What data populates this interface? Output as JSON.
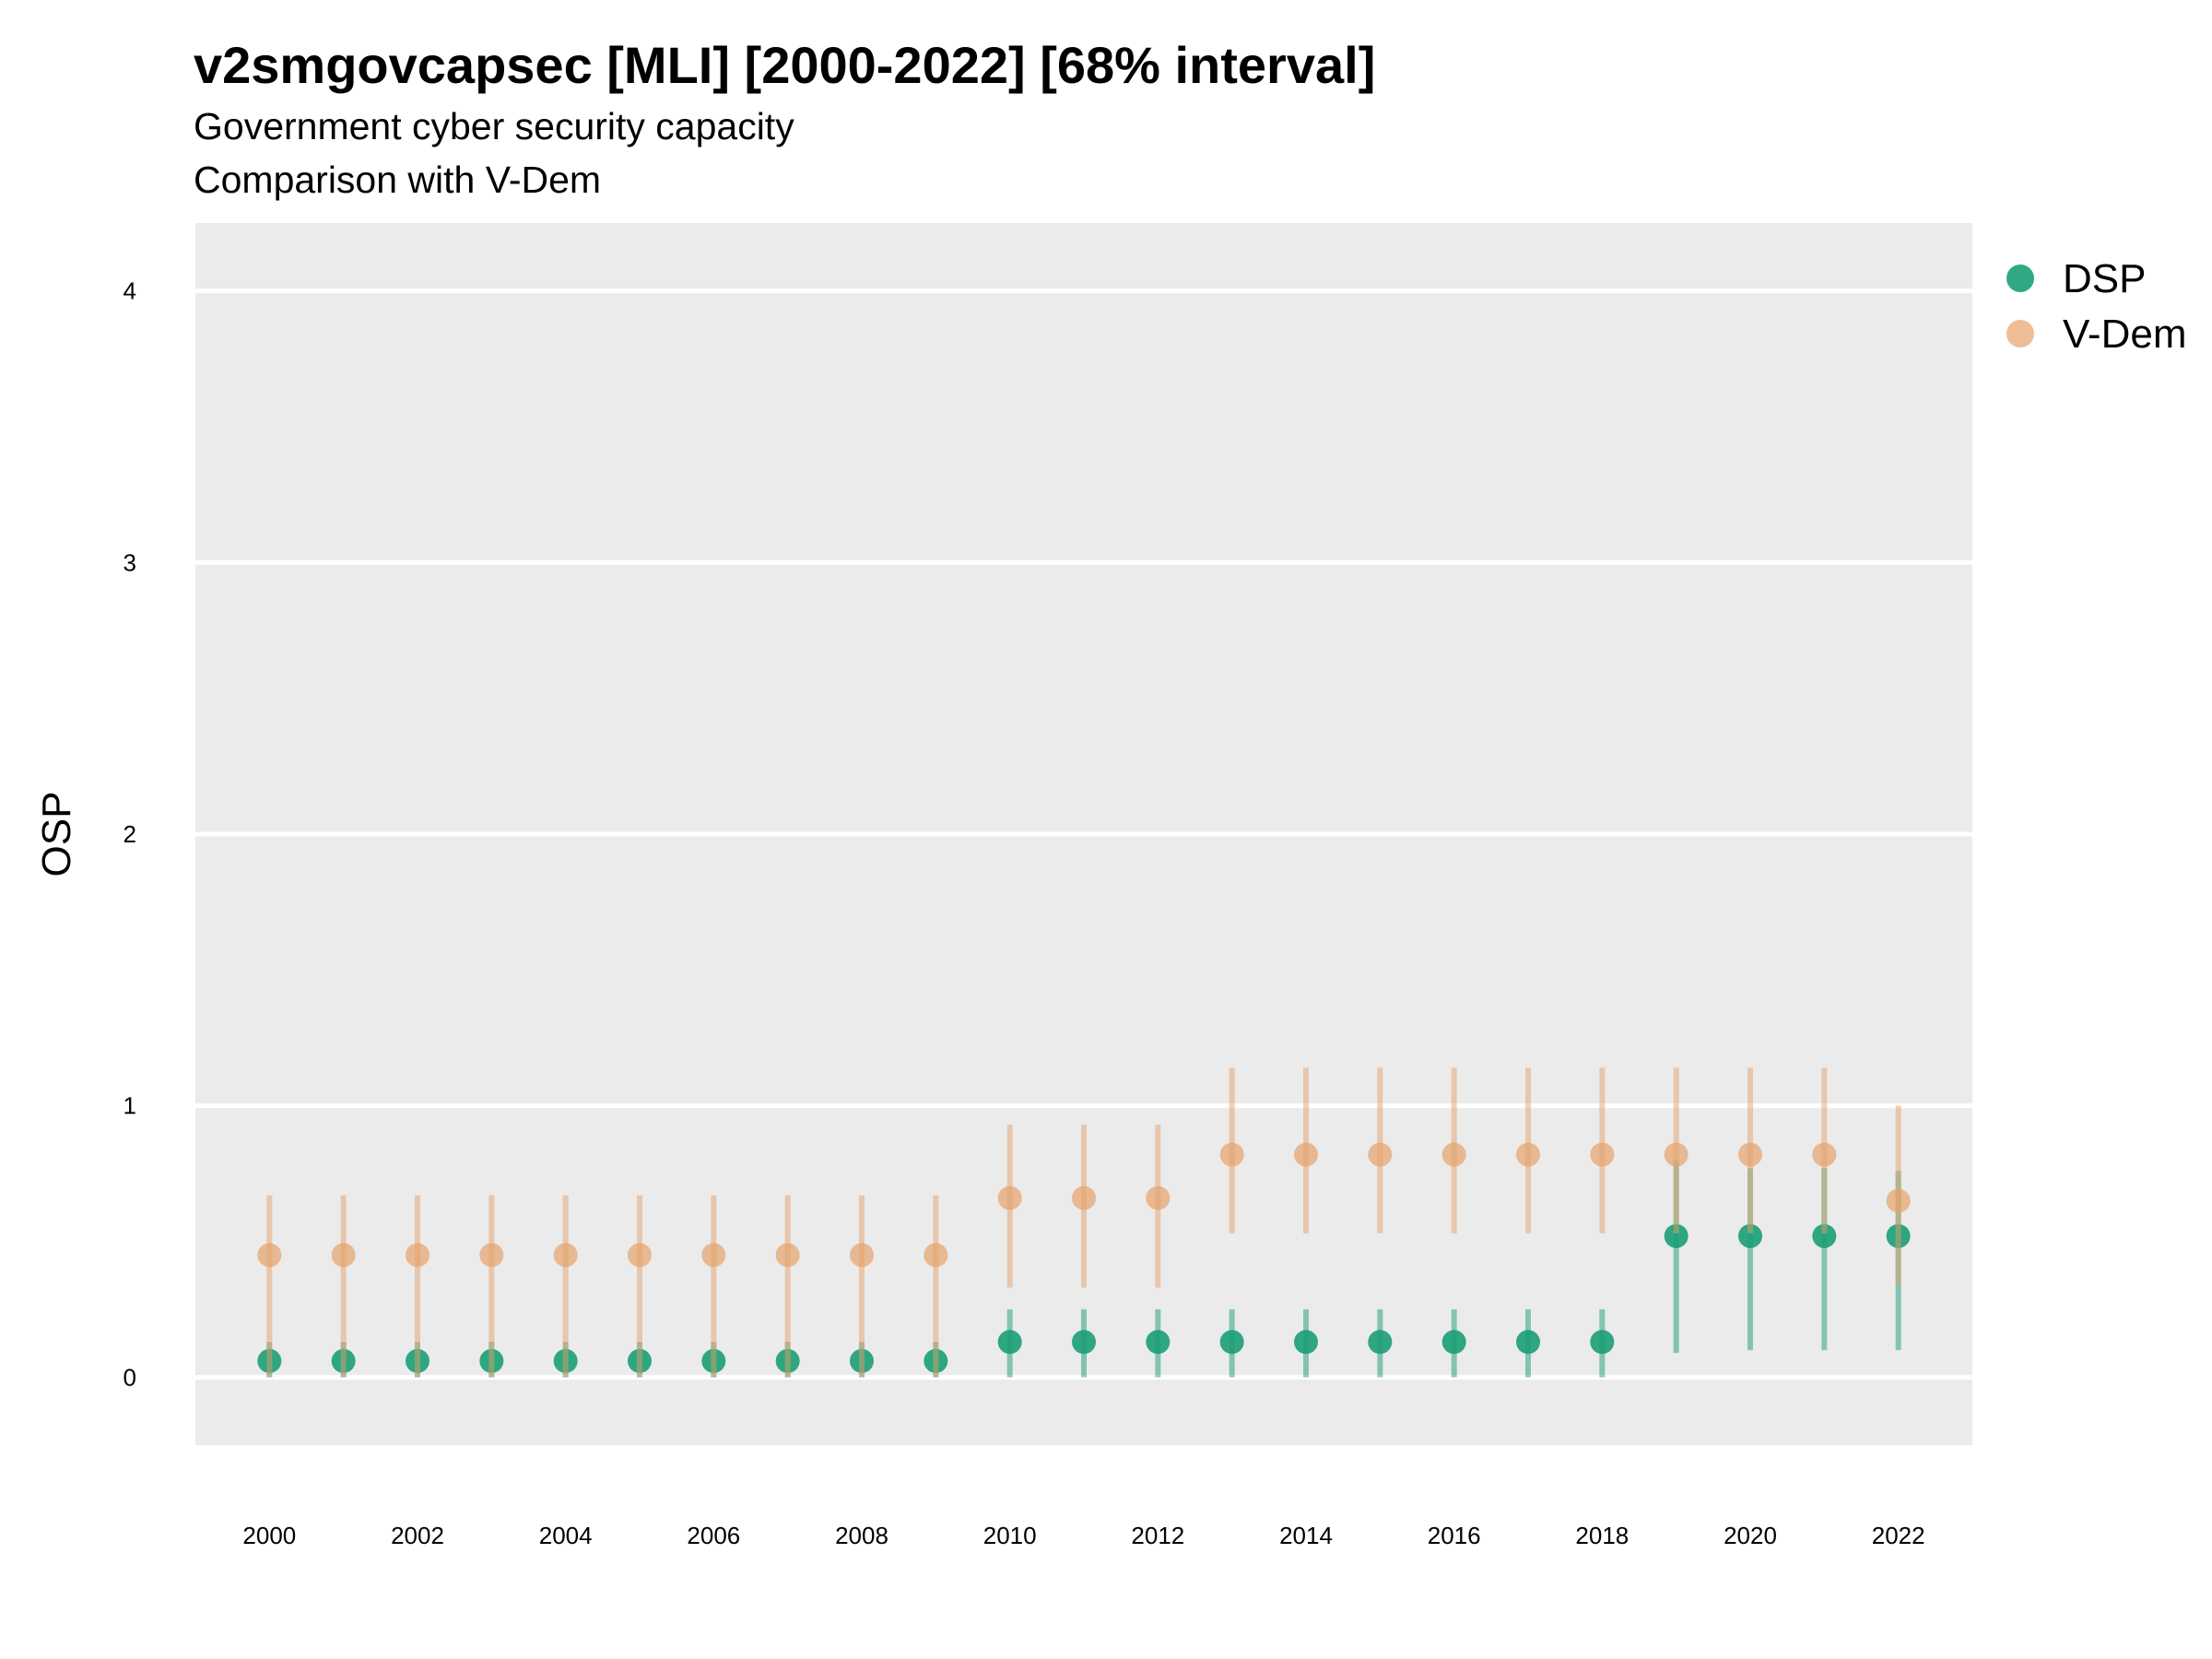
{
  "chart_data": {
    "type": "scatter",
    "title": "v2smgovcapsec [MLI] [2000-2022] [68% interval]",
    "subtitle": "Government cyber security capacity",
    "caption": "Comparison with V-Dem",
    "xlabel": "",
    "ylabel": "OSP",
    "ylim": [
      -0.25,
      4.25
    ],
    "xlim": [
      1999,
      2023
    ],
    "yticks": [
      0,
      1,
      2,
      3,
      4
    ],
    "xticks": [
      2000,
      2002,
      2004,
      2006,
      2008,
      2010,
      2012,
      2014,
      2016,
      2018,
      2020,
      2022
    ],
    "grid": true,
    "legend_position": "right",
    "x": [
      2000,
      2001,
      2002,
      2003,
      2004,
      2005,
      2006,
      2007,
      2008,
      2009,
      2010,
      2011,
      2012,
      2013,
      2014,
      2015,
      2016,
      2017,
      2018,
      2019,
      2020,
      2021,
      2022
    ],
    "series": [
      {
        "name": "DSP",
        "color": "#1b9e77",
        "values": [
          0.06,
          0.06,
          0.06,
          0.06,
          0.06,
          0.06,
          0.06,
          0.06,
          0.06,
          0.06,
          0.13,
          0.13,
          0.13,
          0.13,
          0.13,
          0.13,
          0.13,
          0.13,
          0.13,
          0.52,
          0.52,
          0.52,
          0.52
        ],
        "lower": [
          0.0,
          0.0,
          0.0,
          0.0,
          0.0,
          0.0,
          0.0,
          0.0,
          0.0,
          0.0,
          0.0,
          0.0,
          0.0,
          0.0,
          0.0,
          0.0,
          0.0,
          0.0,
          0.0,
          0.09,
          0.1,
          0.1,
          0.1
        ],
        "upper": [
          0.13,
          0.13,
          0.13,
          0.13,
          0.13,
          0.13,
          0.13,
          0.13,
          0.13,
          0.13,
          0.25,
          0.25,
          0.25,
          0.25,
          0.25,
          0.25,
          0.25,
          0.25,
          0.25,
          0.8,
          0.77,
          0.77,
          0.76
        ]
      },
      {
        "name": "V-Dem",
        "color": "#e6a26b",
        "values": [
          0.45,
          0.45,
          0.45,
          0.45,
          0.45,
          0.45,
          0.45,
          0.45,
          0.45,
          0.45,
          0.66,
          0.66,
          0.66,
          0.82,
          0.82,
          0.82,
          0.82,
          0.82,
          0.82,
          0.82,
          0.82,
          0.82,
          0.65
        ],
        "lower": [
          0.0,
          0.0,
          0.0,
          0.0,
          0.0,
          0.0,
          0.0,
          0.0,
          0.0,
          0.0,
          0.33,
          0.33,
          0.33,
          0.53,
          0.53,
          0.53,
          0.53,
          0.53,
          0.53,
          0.53,
          0.53,
          0.53,
          0.34
        ],
        "upper": [
          0.67,
          0.67,
          0.67,
          0.67,
          0.67,
          0.67,
          0.67,
          0.67,
          0.67,
          0.67,
          0.93,
          0.93,
          0.93,
          1.14,
          1.14,
          1.14,
          1.14,
          1.14,
          1.14,
          1.14,
          1.14,
          1.14,
          1.0
        ]
      }
    ]
  }
}
